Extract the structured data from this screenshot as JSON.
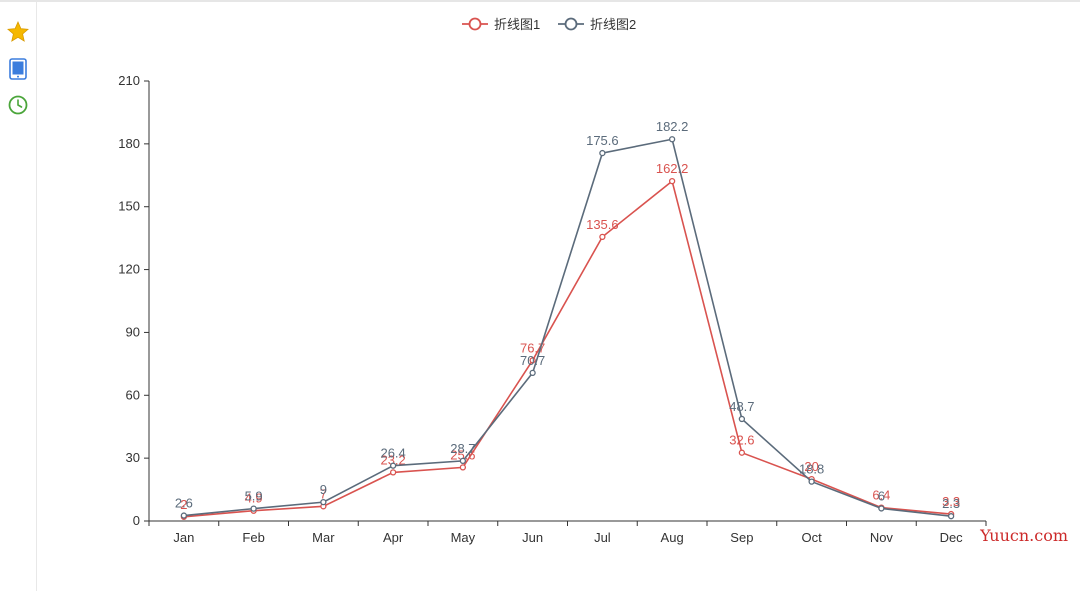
{
  "toolbar": {
    "icons": [
      {
        "name": "star-icon",
        "color": "#f5b800"
      },
      {
        "name": "tablet-icon",
        "color": "#3b7ddd"
      },
      {
        "name": "clock-icon",
        "color": "#4aa53a"
      }
    ]
  },
  "watermark": {
    "text": "Yuucn.com"
  },
  "chart_data": {
    "type": "line",
    "categories": [
      "Jan",
      "Feb",
      "Mar",
      "Apr",
      "May",
      "Jun",
      "Jul",
      "Aug",
      "Sep",
      "Oct",
      "Nov",
      "Dec"
    ],
    "series": [
      {
        "name": "折线图1",
        "color": "#d9534f",
        "values": [
          2,
          4.9,
          7,
          23.2,
          25.6,
          76.7,
          135.6,
          162.2,
          32.6,
          20,
          6.4,
          3.3
        ]
      },
      {
        "name": "折线图2",
        "color": "#5b6b7b",
        "values": [
          2.6,
          5.9,
          9,
          26.4,
          28.7,
          70.7,
          175.6,
          182.2,
          48.7,
          18.8,
          6,
          2.3
        ]
      }
    ],
    "y_ticks": [
      "0",
      "30",
      "60",
      "90",
      "120",
      "150",
      "180",
      "210"
    ],
    "ylim": [
      0,
      210
    ],
    "legend": "top-center",
    "grid": false
  }
}
